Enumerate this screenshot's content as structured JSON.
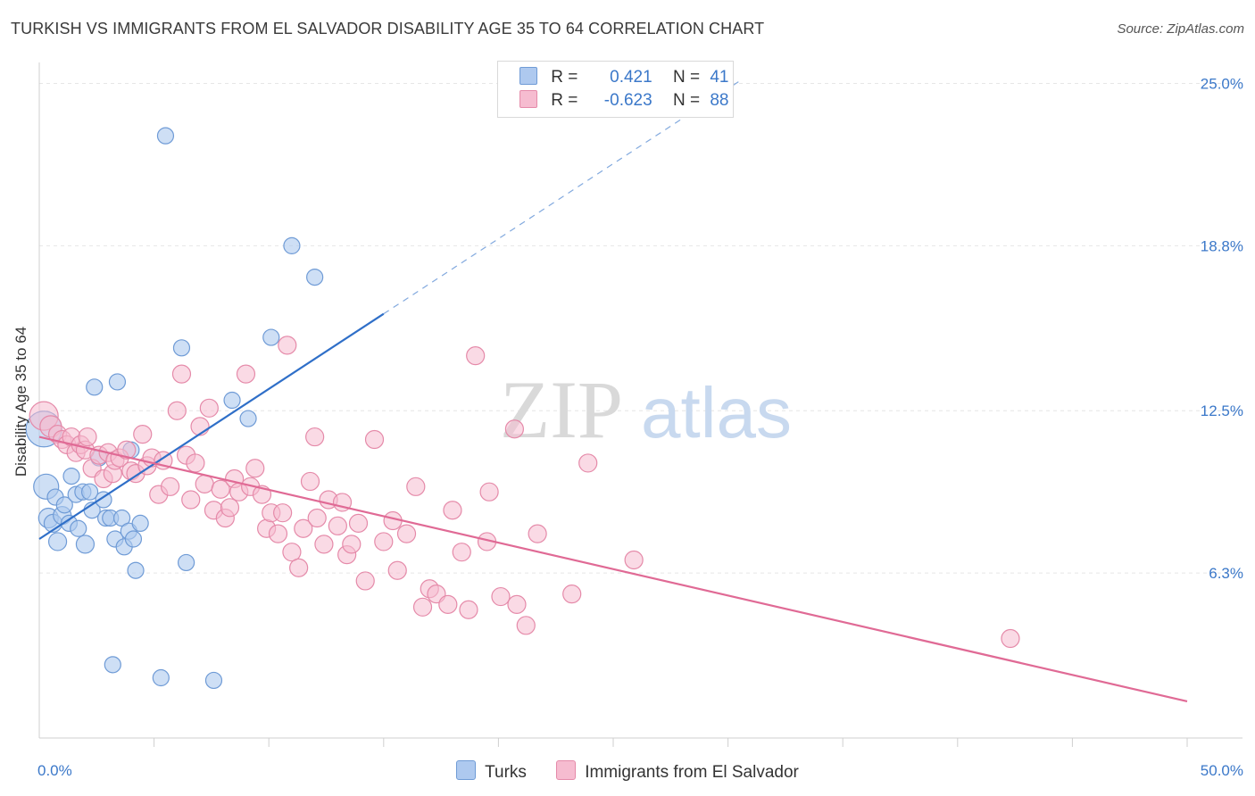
{
  "title": "TURKISH VS IMMIGRANTS FROM EL SALVADOR DISABILITY AGE 35 TO 64 CORRELATION CHART",
  "source": "Source: ZipAtlas.com",
  "watermark": {
    "zip": "ZIP",
    "atlas": "atlas"
  },
  "legend": {
    "turks": {
      "r_label": "R =",
      "r_value": "0.421",
      "n_label": "N =",
      "n_value": "41"
    },
    "salvador": {
      "r_label": "R =",
      "r_value": "-0.623",
      "n_label": "N =",
      "n_value": "88"
    }
  },
  "bottom_legend": {
    "turks": "Turks",
    "salvador": "Immigrants from El Salvador"
  },
  "colors": {
    "turks_fill": "#aec9ef",
    "turks_stroke": "#6f9bd6",
    "turks_line": "#2f6fc8",
    "salv_fill": "#f6bcd0",
    "salv_stroke": "#e58aa9",
    "salv_line": "#e06a95",
    "tick_label": "#3b78c9",
    "grid": "#e6e6e6"
  },
  "chart_data": {
    "type": "scatter",
    "ylabel": "Disability Age 35 to 64",
    "xlabel": "",
    "xlim": [
      0,
      50
    ],
    "ylim": [
      0,
      25.8
    ],
    "x_tick_labels": [
      {
        "v": 0,
        "label": "0.0%"
      },
      {
        "v": 50,
        "label": "50.0%"
      }
    ],
    "y_ticks": [
      {
        "v": 6.3,
        "label": "6.3%"
      },
      {
        "v": 12.5,
        "label": "12.5%"
      },
      {
        "v": 18.8,
        "label": "18.8%"
      },
      {
        "v": 25.0,
        "label": "25.0%"
      }
    ],
    "x_minor_ticks": [
      5,
      10,
      15,
      20,
      25,
      30,
      35,
      40,
      45,
      50
    ],
    "grid": true,
    "legend_position": "top-center",
    "series": [
      {
        "name": "Turks",
        "trend": {
          "x0": 0,
          "y0": 7.6,
          "x1": 15.0,
          "y1": 16.2,
          "dash_to_x": 30.5
        },
        "points": [
          [
            0.2,
            11.8,
            20
          ],
          [
            0.3,
            9.6,
            14
          ],
          [
            0.4,
            8.4,
            11
          ],
          [
            0.6,
            8.2,
            10
          ],
          [
            0.7,
            9.2,
            9
          ],
          [
            0.8,
            7.5,
            10
          ],
          [
            1.0,
            8.5,
            10
          ],
          [
            1.1,
            8.9,
            9
          ],
          [
            1.3,
            8.2,
            9
          ],
          [
            1.4,
            10.0,
            9
          ],
          [
            1.6,
            9.3,
            9
          ],
          [
            1.7,
            8.0,
            9
          ],
          [
            1.9,
            9.4,
            9
          ],
          [
            2.0,
            7.4,
            10
          ],
          [
            2.2,
            9.4,
            9
          ],
          [
            2.3,
            8.7,
            9
          ],
          [
            2.4,
            13.4,
            9
          ],
          [
            2.6,
            10.7,
            9
          ],
          [
            2.8,
            9.1,
            9
          ],
          [
            2.9,
            8.4,
            9
          ],
          [
            3.1,
            8.4,
            9
          ],
          [
            3.3,
            7.6,
            9
          ],
          [
            3.4,
            13.6,
            9
          ],
          [
            3.6,
            8.4,
            9
          ],
          [
            3.7,
            7.3,
            9
          ],
          [
            3.9,
            7.9,
            9
          ],
          [
            4.0,
            11.0,
            9
          ],
          [
            4.1,
            7.6,
            9
          ],
          [
            4.2,
            6.4,
            9
          ],
          [
            4.4,
            8.2,
            9
          ],
          [
            3.2,
            2.8,
            9
          ],
          [
            5.3,
            2.3,
            9
          ],
          [
            7.6,
            2.2,
            9
          ],
          [
            5.5,
            23.0,
            9
          ],
          [
            6.2,
            14.9,
            9
          ],
          [
            6.4,
            6.7,
            9
          ],
          [
            8.4,
            12.9,
            9
          ],
          [
            9.1,
            12.2,
            9
          ],
          [
            10.1,
            15.3,
            9
          ],
          [
            11.0,
            18.8,
            9
          ],
          [
            12.0,
            17.6,
            9
          ]
        ]
      },
      {
        "name": "Immigrants from El Salvador",
        "trend": {
          "x0": 0,
          "y0": 11.5,
          "x1": 50.0,
          "y1": 1.4
        },
        "points": [
          [
            0.2,
            12.3,
            16
          ],
          [
            0.5,
            11.9,
            12
          ],
          [
            0.8,
            11.6,
            10
          ],
          [
            1.0,
            11.4,
            10
          ],
          [
            1.2,
            11.2,
            10
          ],
          [
            1.4,
            11.5,
            10
          ],
          [
            1.6,
            10.9,
            10
          ],
          [
            1.8,
            11.2,
            10
          ],
          [
            2.0,
            11.0,
            10
          ],
          [
            2.1,
            11.5,
            10
          ],
          [
            2.3,
            10.3,
            10
          ],
          [
            2.6,
            10.8,
            10
          ],
          [
            2.8,
            9.9,
            10
          ],
          [
            3.0,
            10.9,
            10
          ],
          [
            3.2,
            10.1,
            10
          ],
          [
            3.3,
            10.6,
            10
          ],
          [
            3.5,
            10.7,
            10
          ],
          [
            3.8,
            11.0,
            10
          ],
          [
            4.0,
            10.2,
            10
          ],
          [
            4.2,
            10.1,
            10
          ],
          [
            4.5,
            11.6,
            10
          ],
          [
            4.7,
            10.4,
            10
          ],
          [
            4.9,
            10.7,
            10
          ],
          [
            5.2,
            9.3,
            10
          ],
          [
            5.4,
            10.6,
            10
          ],
          [
            5.7,
            9.6,
            10
          ],
          [
            6.0,
            12.5,
            10
          ],
          [
            6.2,
            13.9,
            10
          ],
          [
            6.4,
            10.8,
            10
          ],
          [
            6.6,
            9.1,
            10
          ],
          [
            6.8,
            10.5,
            10
          ],
          [
            7.0,
            11.9,
            10
          ],
          [
            7.2,
            9.7,
            10
          ],
          [
            7.4,
            12.6,
            10
          ],
          [
            7.6,
            8.7,
            10
          ],
          [
            7.9,
            9.5,
            10
          ],
          [
            8.1,
            8.4,
            10
          ],
          [
            8.3,
            8.8,
            10
          ],
          [
            8.5,
            9.9,
            10
          ],
          [
            8.7,
            9.4,
            10
          ],
          [
            9.0,
            13.9,
            10
          ],
          [
            9.2,
            9.6,
            10
          ],
          [
            9.4,
            10.3,
            10
          ],
          [
            9.7,
            9.3,
            10
          ],
          [
            9.9,
            8.0,
            10
          ],
          [
            10.1,
            8.6,
            10
          ],
          [
            10.4,
            7.8,
            10
          ],
          [
            10.6,
            8.6,
            10
          ],
          [
            10.8,
            15.0,
            10
          ],
          [
            11.0,
            7.1,
            10
          ],
          [
            11.3,
            6.5,
            10
          ],
          [
            11.5,
            8.0,
            10
          ],
          [
            11.8,
            9.8,
            10
          ],
          [
            12.0,
            11.5,
            10
          ],
          [
            12.1,
            8.4,
            10
          ],
          [
            12.4,
            7.4,
            10
          ],
          [
            12.6,
            9.1,
            10
          ],
          [
            13.0,
            8.1,
            10
          ],
          [
            13.2,
            9.0,
            10
          ],
          [
            13.4,
            7.0,
            10
          ],
          [
            13.6,
            7.4,
            10
          ],
          [
            13.9,
            8.2,
            10
          ],
          [
            14.2,
            6.0,
            10
          ],
          [
            14.6,
            11.4,
            10
          ],
          [
            15.0,
            7.5,
            10
          ],
          [
            15.4,
            8.3,
            10
          ],
          [
            15.6,
            6.4,
            10
          ],
          [
            16.0,
            7.8,
            10
          ],
          [
            16.4,
            9.6,
            10
          ],
          [
            16.7,
            5.0,
            10
          ],
          [
            17.0,
            5.7,
            10
          ],
          [
            17.3,
            5.5,
            10
          ],
          [
            17.8,
            5.1,
            10
          ],
          [
            18.0,
            8.7,
            10
          ],
          [
            18.4,
            7.1,
            10
          ],
          [
            18.7,
            4.9,
            10
          ],
          [
            19.0,
            14.6,
            10
          ],
          [
            19.5,
            7.5,
            10
          ],
          [
            19.6,
            9.4,
            10
          ],
          [
            20.1,
            5.4,
            10
          ],
          [
            20.7,
            11.8,
            10
          ],
          [
            20.8,
            5.1,
            10
          ],
          [
            21.2,
            4.3,
            10
          ],
          [
            21.7,
            7.8,
            10
          ],
          [
            23.2,
            5.5,
            10
          ],
          [
            23.9,
            10.5,
            10
          ],
          [
            25.9,
            6.8,
            10
          ],
          [
            42.3,
            3.8,
            10
          ]
        ]
      }
    ]
  }
}
